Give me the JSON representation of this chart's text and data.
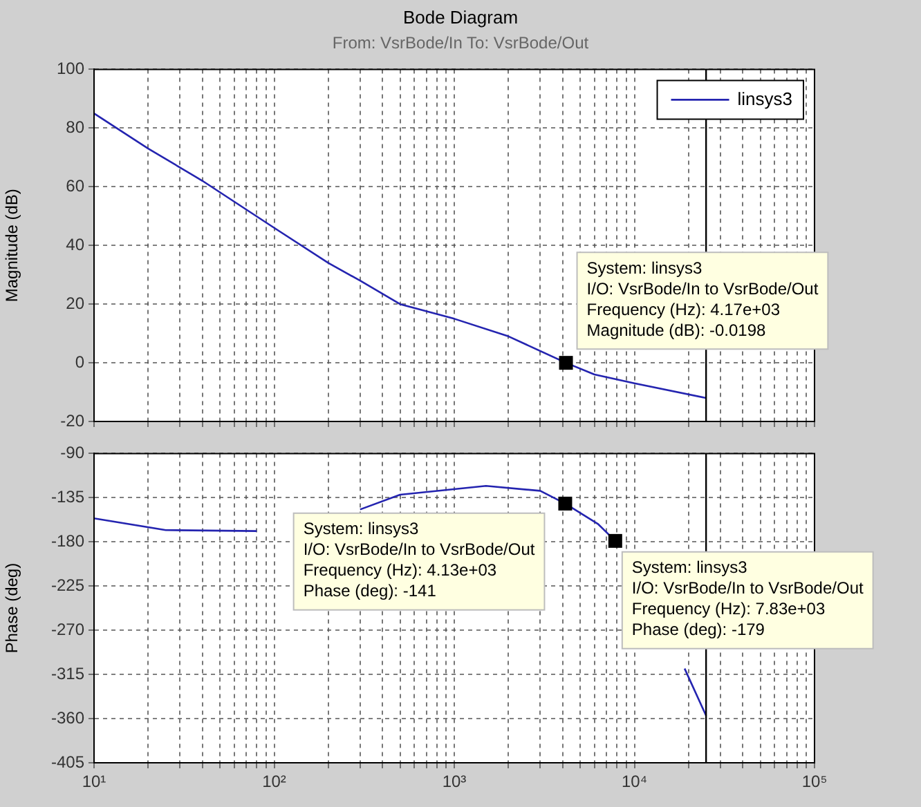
{
  "chart_data": [
    {
      "type": "line",
      "title": "Bode Diagram",
      "subtitle": "From: VsrBode/In  To: VsrBode/Out",
      "ylabel": "Magnitude (dB)",
      "log": "x",
      "grid": true,
      "legend": "top right",
      "tick_labels": "y",
      "xlim": [
        10,
        100000
      ],
      "xticks": [
        {
          "value": 10,
          "label": null
        },
        {
          "value": 20,
          "label": null
        },
        {
          "value": 30,
          "label": null
        },
        {
          "value": 40,
          "label": null
        },
        {
          "value": 50,
          "label": null
        },
        {
          "value": 60,
          "label": null
        },
        {
          "value": 70,
          "label": null
        },
        {
          "value": 80,
          "label": null
        },
        {
          "value": 90,
          "label": null
        },
        {
          "value": 100,
          "label": null
        },
        {
          "value": 200,
          "label": null
        },
        {
          "value": 300,
          "label": null
        },
        {
          "value": 400,
          "label": null
        },
        {
          "value": 500,
          "label": null
        },
        {
          "value": 600,
          "label": null
        },
        {
          "value": 700,
          "label": null
        },
        {
          "value": 800,
          "label": null
        },
        {
          "value": 900,
          "label": null
        },
        {
          "value": 1000,
          "label": null
        },
        {
          "value": 2000,
          "label": null
        },
        {
          "value": 3000,
          "label": null
        },
        {
          "value": 4000,
          "label": null
        },
        {
          "value": 5000,
          "label": null
        },
        {
          "value": 6000,
          "label": null
        },
        {
          "value": 7000,
          "label": null
        },
        {
          "value": 8000,
          "label": null
        },
        {
          "value": 9000,
          "label": null
        },
        {
          "value": 10000,
          "label": null
        },
        {
          "value": 20000,
          "label": null
        },
        {
          "value": 30000,
          "label": null
        },
        {
          "value": 40000,
          "label": null
        },
        {
          "value": 50000,
          "label": null
        },
        {
          "value": 60000,
          "label": null
        },
        {
          "value": 70000,
          "label": null
        },
        {
          "value": 80000,
          "label": null
        },
        {
          "value": 90000,
          "label": null
        },
        {
          "value": 100000,
          "label": null
        }
      ],
      "ylim": [
        -20,
        100
      ],
      "yticks": [
        -20,
        0,
        20,
        40,
        60,
        80,
        100
      ],
      "series": [
        {
          "name": "linsys3",
          "color": "#2424b0",
          "x": [
            10,
            20,
            40,
            100,
            200,
            300,
            500,
            1000,
            2000,
            4170,
            6000,
            10000,
            25000
          ],
          "values": [
            85,
            73,
            62,
            46,
            34,
            28,
            20,
            15,
            9,
            -0.0198,
            -4,
            -7,
            -12
          ]
        }
      ],
      "ref_lines": [
        {
          "axis": "x",
          "value": 25000,
          "color": "#000000"
        }
      ],
      "annotations": [
        {
          "text": "System: linsys3\nI/O: VsrBode/In to VsrBode/Out\nFrequency (Hz): 4.17e+03\nMagnitude (dB): -0.0198",
          "x": 4170,
          "y": -0.0198
        }
      ]
    },
    {
      "type": "line",
      "ylabel": "Phase (deg)",
      "log": "x",
      "grid": true,
      "xlim": [
        10,
        100000
      ],
      "xticks": [
        {
          "value": 10,
          "label": "10¹"
        },
        {
          "value": 20,
          "label": null
        },
        {
          "value": 30,
          "label": null
        },
        {
          "value": 40,
          "label": null
        },
        {
          "value": 50,
          "label": null
        },
        {
          "value": 60,
          "label": null
        },
        {
          "value": 70,
          "label": null
        },
        {
          "value": 80,
          "label": null
        },
        {
          "value": 90,
          "label": null
        },
        {
          "value": 100,
          "label": "10²"
        },
        {
          "value": 200,
          "label": null
        },
        {
          "value": 300,
          "label": null
        },
        {
          "value": 400,
          "label": null
        },
        {
          "value": 500,
          "label": null
        },
        {
          "value": 600,
          "label": null
        },
        {
          "value": 700,
          "label": null
        },
        {
          "value": 800,
          "label": null
        },
        {
          "value": 900,
          "label": null
        },
        {
          "value": 1000,
          "label": "10³"
        },
        {
          "value": 2000,
          "label": null
        },
        {
          "value": 3000,
          "label": null
        },
        {
          "value": 4000,
          "label": null
        },
        {
          "value": 5000,
          "label": null
        },
        {
          "value": 6000,
          "label": null
        },
        {
          "value": 7000,
          "label": null
        },
        {
          "value": 8000,
          "label": null
        },
        {
          "value": 9000,
          "label": null
        },
        {
          "value": 10000,
          "label": "10⁴"
        },
        {
          "value": 20000,
          "label": null
        },
        {
          "value": 30000,
          "label": null
        },
        {
          "value": 40000,
          "label": null
        },
        {
          "value": 50000,
          "label": null
        },
        {
          "value": 60000,
          "label": null
        },
        {
          "value": 70000,
          "label": null
        },
        {
          "value": 80000,
          "label": null
        },
        {
          "value": 90000,
          "label": null
        },
        {
          "value": 100000,
          "label": "10⁵"
        }
      ],
      "ylim": [
        -405,
        -90
      ],
      "yticks": [
        -405,
        -360,
        -315,
        -270,
        -225,
        -180,
        -135,
        -90
      ],
      "series": [
        {
          "color": "#2424b0",
          "x": [
            10,
            25,
            80,
            150,
            300,
            500,
            1500,
            3000,
            4130,
            6300,
            7830,
            12000,
            19000,
            25000
          ],
          "values": [
            -156,
            -168,
            -169,
            null,
            -147,
            -132,
            -123,
            -128,
            -141,
            -162,
            -179,
            null,
            -309,
            -357
          ]
        }
      ],
      "ref_lines": [
        {
          "axis": "x",
          "value": 25000,
          "color": "#000000"
        }
      ],
      "annotations": [
        {
          "text": "System: linsys3\nI/O: VsrBode/In to VsrBode/Out\nFrequency (Hz): 4.13e+03\nPhase (deg): -141",
          "x": 4130,
          "y": -141
        },
        {
          "text": "System: linsys3\nI/O: VsrBode/In to VsrBode/Out\nFrequency (Hz): 7.83e+03\nPhase (deg): -179",
          "x": 7830,
          "y": -179
        }
      ]
    }
  ]
}
